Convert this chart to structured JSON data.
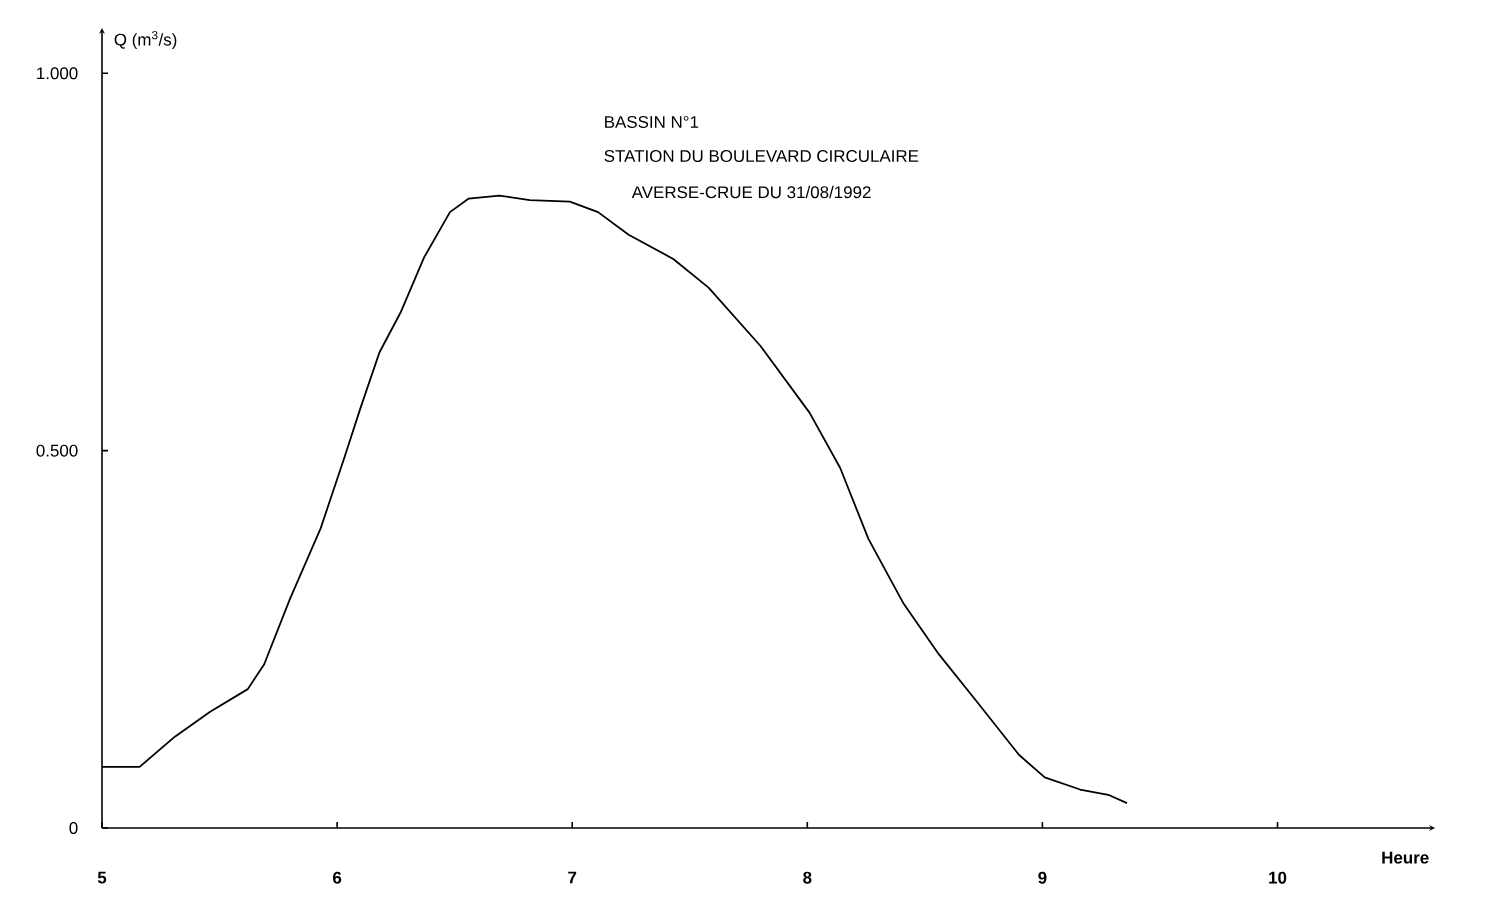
{
  "chart_data": {
    "type": "line",
    "title": "BASSIN N°1",
    "subtitle": "STATION DU BOULEVARD CIRCULAIRE",
    "annotations": [
      "AVERSE-CRUE DU 31/08/1992"
    ],
    "xlabel": "Heure",
    "ylabel": "Q (m$^{3}$/s)",
    "x": [
      5,
      5.16,
      5.31,
      5.46,
      5.62,
      5.69,
      5.8,
      5.93,
      6.03,
      6.1,
      6.18,
      6.27,
      6.37,
      6.48,
      6.56,
      6.69,
      6.82,
      6.99,
      7.11,
      7.24,
      7.43,
      7.58,
      7.8,
      8.01,
      8.14,
      8.26,
      8.41,
      8.56,
      8.73,
      8.9,
      9.01,
      9.16,
      9.28,
      9.36
    ],
    "series": [
      {
        "color": "#000000",
        "values": [
          0.081,
          0.081,
          0.121,
          0.154,
          0.184,
          0.217,
          0.304,
          0.397,
          0.49,
          0.557,
          0.63,
          0.683,
          0.756,
          0.816,
          0.834,
          0.838,
          0.832,
          0.83,
          0.816,
          0.786,
          0.754,
          0.716,
          0.639,
          0.55,
          0.477,
          0.383,
          0.297,
          0.23,
          0.164,
          0.097,
          0.067,
          0.051,
          0.044,
          0.033
        ]
      }
    ],
    "xlim": [
      5,
      10.67
    ],
    "ylim": [
      0,
      1.06
    ],
    "xticks": [
      5,
      6,
      7,
      8,
      9,
      10
    ],
    "yticks": [
      0,
      {
        "value": 0.5,
        "label": "0.500"
      },
      {
        "value": 1,
        "label": "1.000"
      }
    ],
    "grid": false,
    "marker": "none",
    "line_style": "solid"
  }
}
